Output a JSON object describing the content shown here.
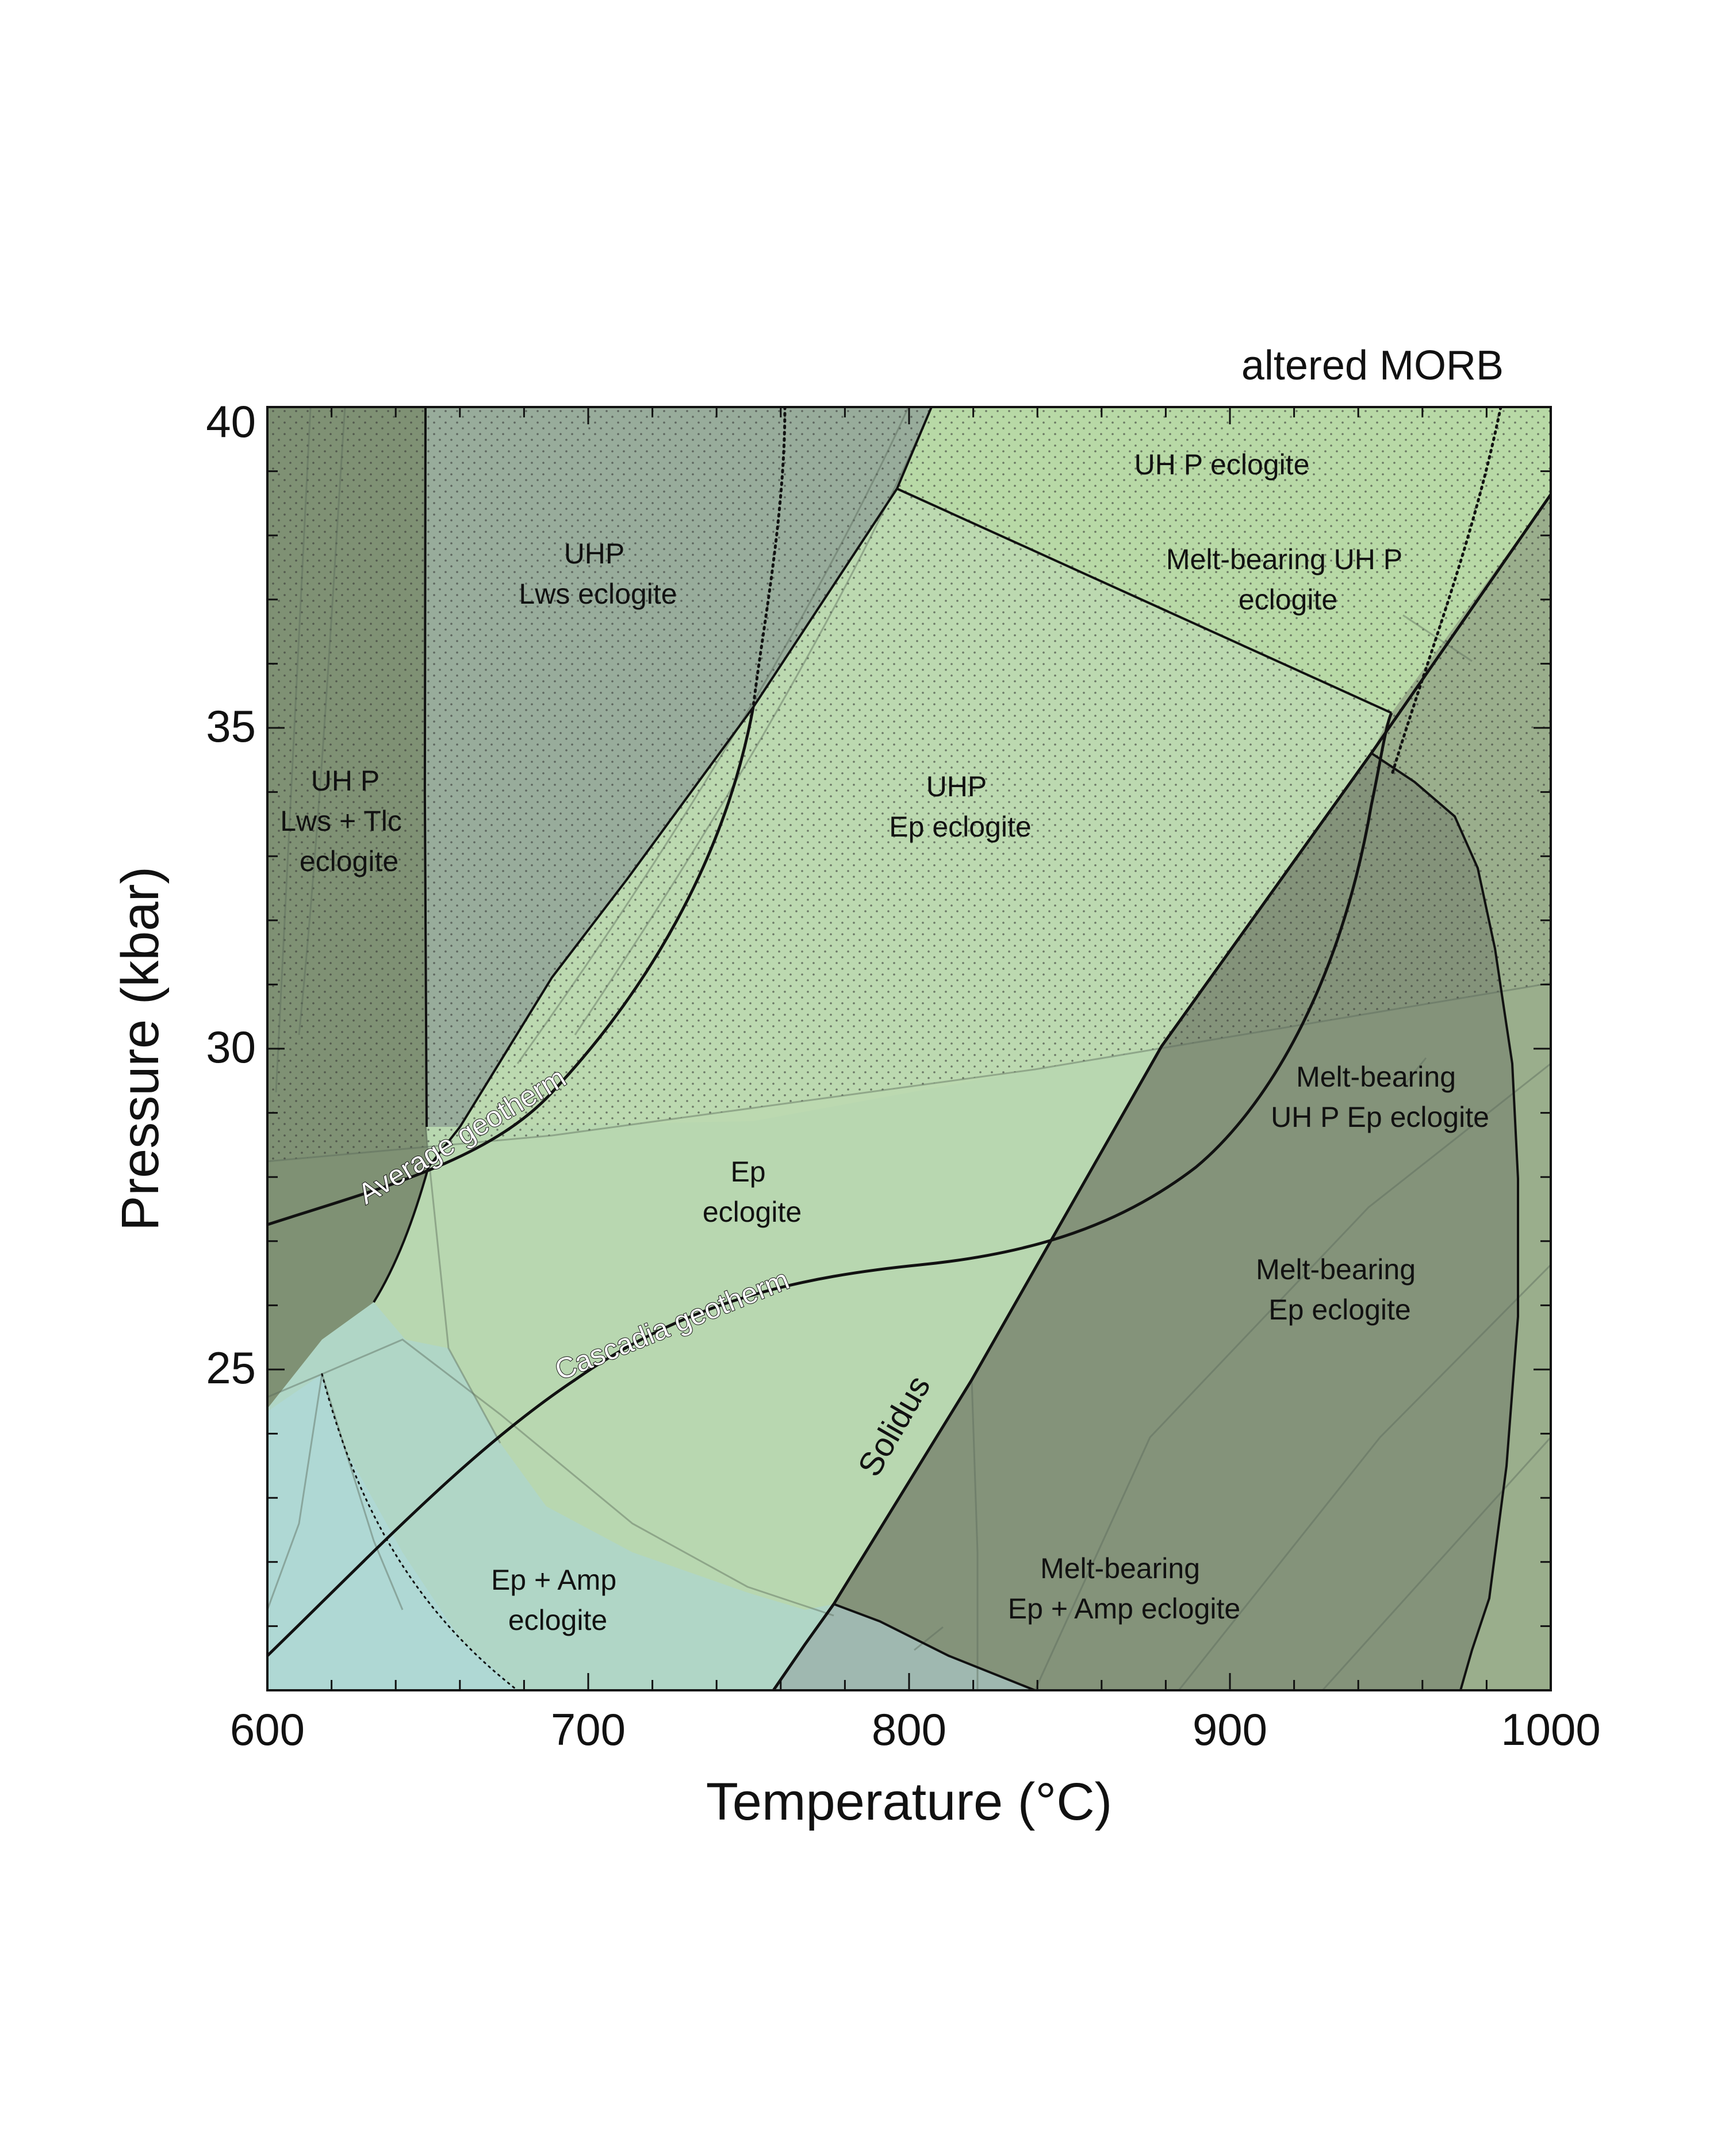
{
  "title": "altered MORB",
  "x_axis": {
    "label": "Temperature (°C)",
    "min": 600,
    "max": 1000,
    "major_ticks": [
      "600",
      "700",
      "800",
      "900",
      "1000"
    ],
    "minor_step": 20
  },
  "y_axis": {
    "label": "Pressure (kbar)",
    "min": 20,
    "max": 40,
    "major_ticks": [
      "25",
      "30",
      "35",
      "40"
    ],
    "minor_step": 1
  },
  "colors": {
    "uhp_lws_tlc": "#7f9174",
    "uhp_lws": "#98ac9b",
    "uhp_ep": "#bcd9b0",
    "uhp_eclogite": "#b8d9a6",
    "ep_eclogite": "#b8d7b0",
    "ep_amp": "#b0d6c6",
    "blue_corner": "#afd8d4",
    "melt_dark": "#84937a",
    "melt_light": "#9aae8c",
    "lower_left": "#8a9e84",
    "gray_patch": "#9fb8b0"
  },
  "fields": [
    {
      "id": "uhp-lws-tlc",
      "lines": [
        "UH P",
        "Lws + Tlc",
        "eclogite"
      ]
    },
    {
      "id": "uhp-lws",
      "lines": [
        "UHP",
        "Lws eclogite"
      ]
    },
    {
      "id": "uhp-eclogite",
      "lines": [
        "UH P  eclogite"
      ]
    },
    {
      "id": "melt-uhp-eclogite",
      "lines": [
        "Melt-bearing UH  P",
        "eclogite"
      ]
    },
    {
      "id": "uhp-ep",
      "lines": [
        "UHP",
        "Ep eclogite"
      ]
    },
    {
      "id": "ep-eclogite",
      "lines": [
        "Ep",
        "eclogite"
      ]
    },
    {
      "id": "melt-uhp-ep",
      "lines": [
        "Melt-bearing",
        "UH P  Ep eclogite"
      ]
    },
    {
      "id": "melt-ep",
      "lines": [
        "Melt-bearing",
        "Ep eclogite"
      ]
    },
    {
      "id": "ep-amp",
      "lines": [
        "Ep + Amp",
        "eclogite"
      ]
    },
    {
      "id": "melt-ep-amp",
      "lines": [
        "Melt-bearing",
        "Ep + Amp eclogite"
      ]
    }
  ],
  "curves": {
    "average_geotherm": "Average geotherm",
    "cascadia_geotherm": "Cascadia geotherm",
    "solidus": "Solidus"
  }
}
